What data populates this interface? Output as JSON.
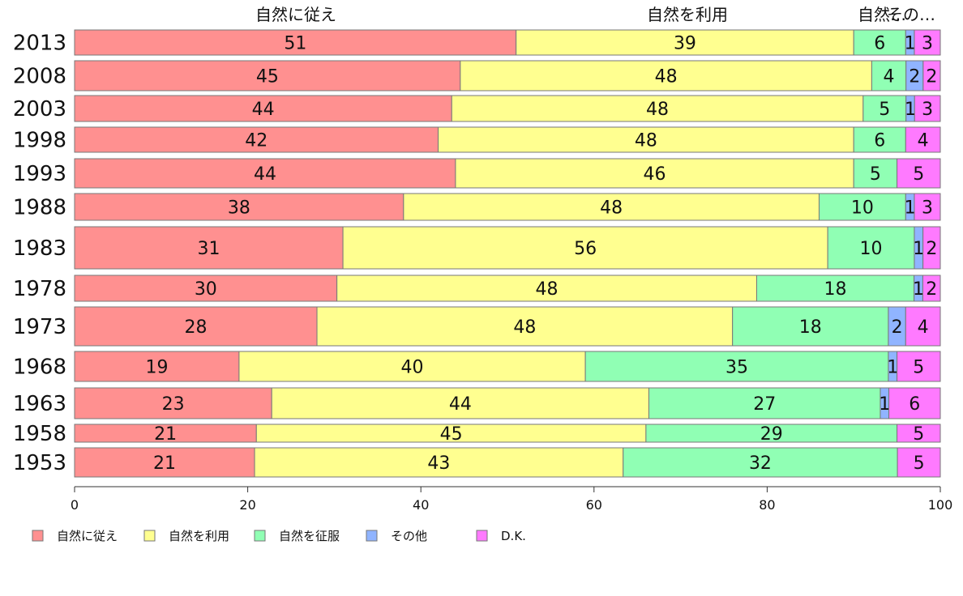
{
  "chart_data": {
    "type": "bar",
    "orientation": "horizontal",
    "stacked": true,
    "categories": [
      "2013",
      "2008",
      "2003",
      "1998",
      "1993",
      "1988",
      "1983",
      "1978",
      "1973",
      "1968",
      "1963",
      "1958",
      "1953"
    ],
    "series": [
      {
        "name": "自然に従え",
        "color": "#ff9090",
        "values": [
          51,
          45,
          44,
          42,
          44,
          38,
          31,
          30,
          28,
          19,
          23,
          21,
          21
        ]
      },
      {
        "name": "自然を利用",
        "color": "#ffff90",
        "values": [
          39,
          48,
          48,
          48,
          46,
          48,
          56,
          48,
          48,
          40,
          44,
          45,
          43
        ]
      },
      {
        "name": "自然を征服",
        "color": "#90ffb4",
        "values": [
          6,
          4,
          5,
          6,
          5,
          10,
          10,
          18,
          18,
          35,
          27,
          29,
          32
        ]
      },
      {
        "name": "その他",
        "color": "#90b4ff",
        "values": [
          1,
          2,
          1,
          0,
          0,
          1,
          1,
          1,
          2,
          1,
          1,
          0,
          0
        ]
      },
      {
        "name": "D.K.",
        "color": "#ff7aff",
        "values": [
          3,
          2,
          3,
          4,
          5,
          3,
          2,
          2,
          4,
          5,
          6,
          5,
          5
        ]
      }
    ],
    "top_labels": [
      "自然に従え",
      "自然を利用",
      "自然…",
      "その…"
    ],
    "xlim": [
      0,
      100
    ],
    "xticks": [
      "0",
      "20",
      "40",
      "60",
      "80",
      "100"
    ],
    "grid": false,
    "legend_position": "bottom-left"
  }
}
